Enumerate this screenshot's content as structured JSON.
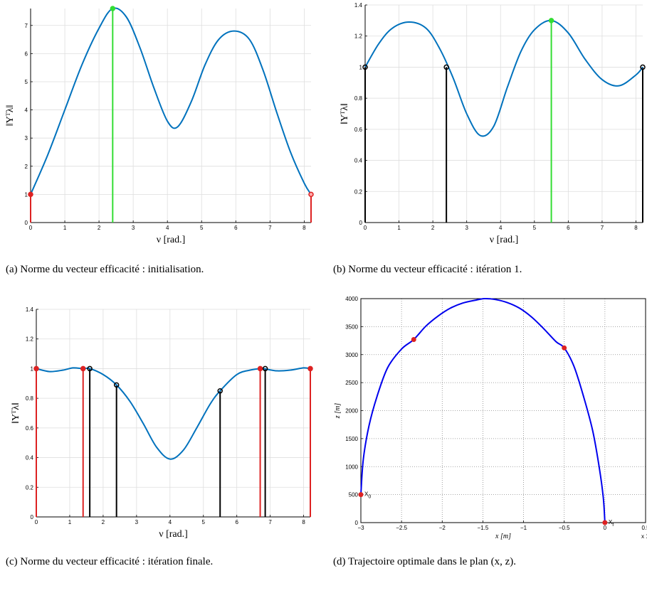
{
  "captions": {
    "a": "(a) Norme du vecteur efficacité : initialisation.",
    "b": "(b) Norme du vecteur efficacité : itération 1.",
    "c": "(c) Norme du vecteur efficacité : itération finale.",
    "d": "(d) Trajectoire optimale dans le plan (x, z)."
  },
  "colors": {
    "curve_lambda": "#0072bd",
    "curve_traj": "#0000ee",
    "red": "#dd2222",
    "green": "#33dd33",
    "black": "#000000"
  },
  "chart_data": [
    {
      "id": "a",
      "type": "line",
      "xlabel": "ν [rad.]",
      "ylabel": "‖Yᵀλ‖",
      "xlim": [
        0,
        8.2
      ],
      "ylim": [
        0,
        7.6
      ],
      "xticks": [
        0,
        1,
        2,
        3,
        4,
        5,
        6,
        7,
        8
      ],
      "yticks": [
        0,
        1,
        2,
        3,
        4,
        5,
        6,
        7
      ],
      "grid": "solid",
      "series": [
        {
          "x": [
            0,
            0.5,
            1,
            1.5,
            2,
            2.4,
            2.8,
            3.2,
            3.6,
            4,
            4.3,
            4.7,
            5.1,
            5.5,
            5.95,
            6.4,
            6.8,
            7.2,
            7.6,
            8,
            8.2
          ],
          "y": [
            1,
            2.4,
            4,
            5.6,
            6.9,
            7.6,
            7.3,
            6.2,
            4.8,
            3.6,
            3.4,
            4.3,
            5.6,
            6.5,
            6.8,
            6.5,
            5.4,
            3.9,
            2.5,
            1.4,
            1
          ]
        }
      ],
      "stems": [
        {
          "x": 0,
          "y": 1,
          "color": "red"
        },
        {
          "x": 2.4,
          "y": 7.6,
          "color": "green"
        },
        {
          "x": 8.2,
          "y": 1,
          "color": "red",
          "open": true
        }
      ]
    },
    {
      "id": "b",
      "type": "line",
      "xlabel": "ν [rad.]",
      "ylabel": "‖Yᵀλ‖",
      "xlim": [
        0,
        8.2
      ],
      "ylim": [
        0,
        1.4
      ],
      "xticks": [
        0,
        1,
        2,
        3,
        4,
        5,
        6,
        7,
        8
      ],
      "yticks": [
        0,
        0.2,
        0.4,
        0.6,
        0.8,
        1,
        1.2,
        1.4
      ],
      "grid": "solid",
      "series": [
        {
          "x": [
            0,
            0.4,
            0.8,
            1.3,
            1.8,
            2.2,
            2.6,
            3,
            3.4,
            3.8,
            4.2,
            4.6,
            5,
            5.5,
            6,
            6.5,
            7,
            7.5,
            8,
            8.2
          ],
          "y": [
            1,
            1.15,
            1.25,
            1.29,
            1.25,
            1.12,
            0.93,
            0.7,
            0.56,
            0.62,
            0.87,
            1.1,
            1.24,
            1.3,
            1.22,
            1.05,
            0.92,
            0.88,
            0.95,
            1
          ]
        }
      ],
      "stems": [
        {
          "x": 0,
          "y": 1,
          "color": "black"
        },
        {
          "x": 2.4,
          "y": 1,
          "color": "black"
        },
        {
          "x": 5.5,
          "y": 1.3,
          "color": "green"
        },
        {
          "x": 8.2,
          "y": 1,
          "color": "black"
        }
      ]
    },
    {
      "id": "c",
      "type": "line",
      "xlabel": "ν [rad.]",
      "ylabel": "‖Yᵀλ‖",
      "xlim": [
        0,
        8.2
      ],
      "ylim": [
        0,
        1.4
      ],
      "xticks": [
        0,
        1,
        2,
        3,
        4,
        5,
        6,
        7,
        8
      ],
      "yticks": [
        0,
        0.2,
        0.4,
        0.6,
        0.8,
        1,
        1.2,
        1.4
      ],
      "grid": "solid",
      "series": [
        {
          "x": [
            0,
            0.4,
            0.8,
            1.1,
            1.4,
            1.6,
            2,
            2.4,
            2.8,
            3.2,
            3.6,
            4,
            4.4,
            4.8,
            5.2,
            5.5,
            6,
            6.4,
            6.7,
            6.8,
            7.2,
            7.6,
            8,
            8.2
          ],
          "y": [
            1,
            0.98,
            0.99,
            1.005,
            1,
            1,
            0.96,
            0.89,
            0.78,
            0.63,
            0.47,
            0.39,
            0.45,
            0.6,
            0.76,
            0.85,
            0.96,
            0.99,
            1,
            1,
            0.985,
            0.99,
            1.005,
            1
          ]
        }
      ],
      "stems": [
        {
          "x": 0,
          "y": 1,
          "color": "red"
        },
        {
          "x": 1.4,
          "y": 1,
          "color": "red"
        },
        {
          "x": 1.6,
          "y": 1,
          "color": "black"
        },
        {
          "x": 2.4,
          "y": 0.89,
          "color": "black"
        },
        {
          "x": 5.5,
          "y": 0.85,
          "color": "black"
        },
        {
          "x": 6.7,
          "y": 1,
          "color": "red"
        },
        {
          "x": 6.85,
          "y": 1,
          "color": "black"
        },
        {
          "x": 8.2,
          "y": 1,
          "color": "red"
        }
      ]
    },
    {
      "id": "d",
      "type": "line",
      "xlabel": "x [m]",
      "ylabel": "z [m]",
      "x_multiplier": "x 10⁴",
      "xlim": [
        -3,
        0.5
      ],
      "ylim": [
        0,
        4000
      ],
      "xticks": [
        -3,
        -2.5,
        -2,
        -1.5,
        -1,
        -0.5,
        0,
        0.5
      ],
      "xticklabels": [
        "−3",
        "−2.5",
        "−2",
        "−1.5",
        "−1",
        "−0.5",
        "0",
        "0.5"
      ],
      "yticks": [
        0,
        500,
        1000,
        1500,
        2000,
        2500,
        3000,
        3500,
        4000
      ],
      "grid": "dotted",
      "series": [
        {
          "x": [
            -3,
            -2.97,
            -2.9,
            -2.8,
            -2.67,
            -2.5,
            -2.35,
            -2.2,
            -2.05,
            -1.9,
            -1.75,
            -1.6,
            -1.48,
            -1.35,
            -1.2,
            -1.05,
            -0.9,
            -0.75,
            -0.6,
            -0.5,
            -0.38,
            -0.26,
            -0.15,
            -0.07,
            -0.02,
            0
          ],
          "y": [
            500,
            1130,
            1730,
            2260,
            2770,
            3100,
            3270,
            3510,
            3690,
            3830,
            3920,
            3970,
            4000,
            3985,
            3930,
            3830,
            3670,
            3460,
            3230,
            3120,
            2790,
            2240,
            1640,
            990,
            450,
            0
          ]
        }
      ],
      "markers": [
        {
          "x": -3,
          "y": 500,
          "label": "X",
          "sub": "0"
        },
        {
          "x": -2.35,
          "y": 3270
        },
        {
          "x": -0.5,
          "y": 3120
        },
        {
          "x": 0,
          "y": 0,
          "label": "X",
          "sub": "f"
        }
      ]
    }
  ]
}
